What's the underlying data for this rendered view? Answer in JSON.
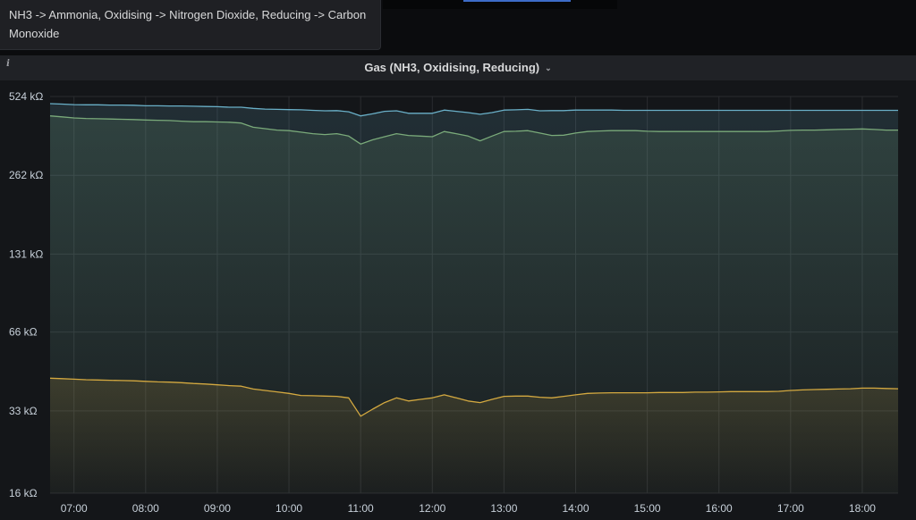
{
  "tooltip": {
    "text": "NH3 -> Ammonia, Oxidising -> Nitrogen Dioxide, Reducing -> Carbon Monoxide"
  },
  "panel": {
    "title": "Gas (NH3, Oxidising, Reducing)",
    "info_icon": "info-icon",
    "menu_icon": "chevron-down-icon"
  },
  "colors": {
    "background": "#141619",
    "grid": "#2a2c30",
    "series_cyan": "#6ab0c8",
    "series_green": "#7aaa7a",
    "series_yellow": "#d4a940"
  },
  "chart_data": {
    "type": "area",
    "title": "Gas (NH3, Oxidising, Reducing)",
    "y_scale": "log",
    "y_unit": "kΩ",
    "y_ticks": [
      "524 kΩ",
      "262 kΩ",
      "131 kΩ",
      "66 kΩ",
      "33 kΩ",
      "16 kΩ"
    ],
    "y_tick_values": [
      524,
      262,
      131,
      66,
      33,
      16
    ],
    "ylim": [
      16,
      524
    ],
    "x_ticks": [
      "07:00",
      "08:00",
      "09:00",
      "10:00",
      "11:00",
      "12:00",
      "13:00",
      "14:00",
      "15:00",
      "16:00",
      "17:00",
      "18:00"
    ],
    "grid": true,
    "legend": "none",
    "x": [
      "06:40",
      "06:50",
      "07:00",
      "07:10",
      "07:20",
      "07:30",
      "07:40",
      "07:50",
      "08:00",
      "08:10",
      "08:20",
      "08:30",
      "08:40",
      "08:50",
      "09:00",
      "09:10",
      "09:20",
      "09:30",
      "09:40",
      "09:50",
      "10:00",
      "10:10",
      "10:20",
      "10:30",
      "10:40",
      "10:50",
      "11:00",
      "11:10",
      "11:20",
      "11:30",
      "11:40",
      "11:50",
      "12:00",
      "12:10",
      "12:20",
      "12:30",
      "12:40",
      "12:50",
      "13:00",
      "13:10",
      "13:20",
      "13:30",
      "13:40",
      "13:50",
      "14:00",
      "14:10",
      "14:20",
      "14:30",
      "14:40",
      "14:50",
      "15:00",
      "15:10",
      "15:20",
      "15:30",
      "15:40",
      "15:50",
      "16:00",
      "16:10",
      "16:20",
      "16:30",
      "16:40",
      "16:50",
      "17:00",
      "17:10",
      "17:20",
      "17:30",
      "17:40",
      "17:50",
      "18:00",
      "18:10",
      "18:20",
      "18:30"
    ],
    "series": [
      {
        "color": "#6ab0c8",
        "values": [
          492,
          490,
          488,
          487,
          487,
          486,
          486,
          485,
          483,
          483,
          482,
          482,
          481,
          480,
          479,
          477,
          477,
          472,
          469,
          468,
          467,
          466,
          464,
          462,
          463,
          458,
          442,
          450,
          460,
          462,
          452,
          452,
          452,
          465,
          460,
          455,
          448,
          455,
          465,
          466,
          468,
          462,
          463,
          463,
          465,
          465,
          465,
          465,
          464,
          464,
          464,
          464,
          464,
          464,
          464,
          464,
          464,
          464,
          464,
          464,
          464,
          464,
          464,
          464,
          464,
          464,
          464,
          464,
          464,
          464,
          464,
          464
        ]
      },
      {
        "color": "#7aaa7a",
        "values": [
          442,
          438,
          434,
          432,
          431,
          430,
          429,
          428,
          426,
          425,
          424,
          422,
          420,
          420,
          419,
          418,
          415,
          400,
          395,
          390,
          388,
          383,
          378,
          375,
          378,
          370,
          345,
          358,
          368,
          378,
          372,
          370,
          368,
          385,
          378,
          370,
          355,
          370,
          385,
          386,
          388,
          380,
          372,
          373,
          380,
          385,
          387,
          388,
          388,
          388,
          386,
          385,
          385,
          385,
          385,
          385,
          385,
          385,
          385,
          385,
          385,
          387,
          389,
          390,
          390,
          391,
          392,
          393,
          394,
          392,
          390,
          390
        ]
      },
      {
        "color": "#d4a940",
        "values": [
          44.0,
          43.8,
          43.6,
          43.4,
          43.3,
          43.2,
          43.1,
          43.0,
          42.8,
          42.6,
          42.5,
          42.3,
          42.0,
          41.8,
          41.5,
          41.2,
          41.0,
          40.0,
          39.5,
          39.0,
          38.5,
          37.8,
          37.7,
          37.6,
          37.5,
          37.0,
          31.5,
          33.5,
          35.5,
          37.0,
          36.0,
          36.5,
          37.0,
          38.0,
          37.0,
          36.0,
          35.5,
          36.5,
          37.5,
          37.6,
          37.6,
          37.2,
          37.0,
          37.5,
          38.0,
          38.5,
          38.6,
          38.7,
          38.7,
          38.7,
          38.7,
          38.8,
          38.8,
          38.8,
          38.9,
          38.9,
          39.0,
          39.1,
          39.1,
          39.1,
          39.1,
          39.2,
          39.5,
          39.7,
          39.8,
          39.9,
          40.0,
          40.1,
          40.3,
          40.3,
          40.2,
          40.1
        ]
      }
    ]
  }
}
